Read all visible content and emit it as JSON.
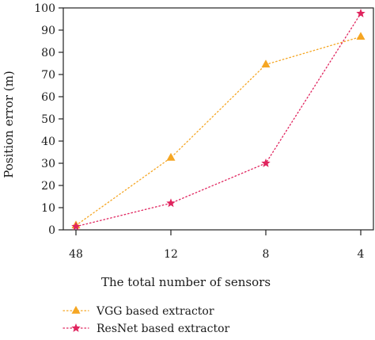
{
  "chart_data": {
    "type": "line",
    "categories": [
      "48",
      "12",
      "8",
      "4"
    ],
    "ylabel": "Position error (m)",
    "xlabel": "The total number of sensors",
    "ylim": [
      0,
      100
    ],
    "yticks": [
      0,
      10,
      20,
      30,
      40,
      50,
      60,
      70,
      80,
      90,
      100
    ],
    "grid": false,
    "legend_position": "bottom-left",
    "series": [
      {
        "name": "VGG based extractor",
        "values": [
          2,
          32.5,
          74.5,
          87
        ],
        "color": "#f5a623",
        "marker": "triangle"
      },
      {
        "name": "ResNet based extractor",
        "values": [
          1.5,
          12,
          30,
          97.5
        ],
        "color": "#e0245e",
        "marker": "star"
      }
    ]
  }
}
